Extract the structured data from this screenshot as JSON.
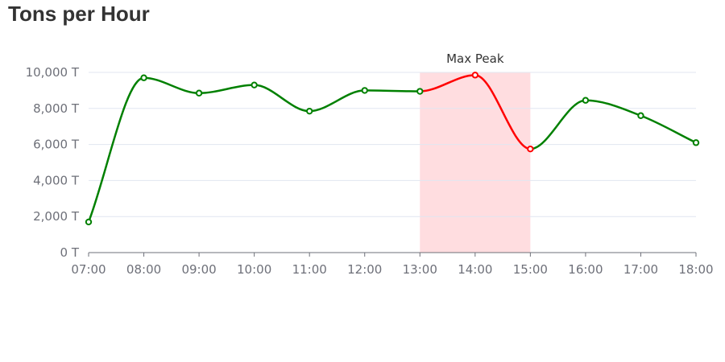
{
  "chart_data": {
    "type": "line",
    "title": "Tons per Hour",
    "categories": [
      "07:00",
      "08:00",
      "09:00",
      "10:00",
      "11:00",
      "12:00",
      "13:00",
      "14:00",
      "15:00",
      "16:00",
      "17:00",
      "18:00"
    ],
    "series": [
      {
        "values": [
          1700,
          9700,
          8850,
          9300,
          7850,
          9000,
          8950,
          9850,
          5750,
          8450,
          7600,
          6100
        ]
      }
    ],
    "y_tick_values": [
      0,
      2000,
      4000,
      6000,
      8000,
      10000
    ],
    "y_tick_labels": [
      "0 T",
      "2,000 T",
      "4,000 T",
      "6,000 T",
      "8,000 T",
      "10,000 T"
    ],
    "ylim": [
      0,
      10000
    ],
    "grid": true,
    "line_color": "#008000",
    "highlight_color": "#ff0000",
    "mark_area": {
      "label": "Max Peak",
      "from": "13:00",
      "to": "15:00",
      "color": "#ffdde0"
    }
  }
}
